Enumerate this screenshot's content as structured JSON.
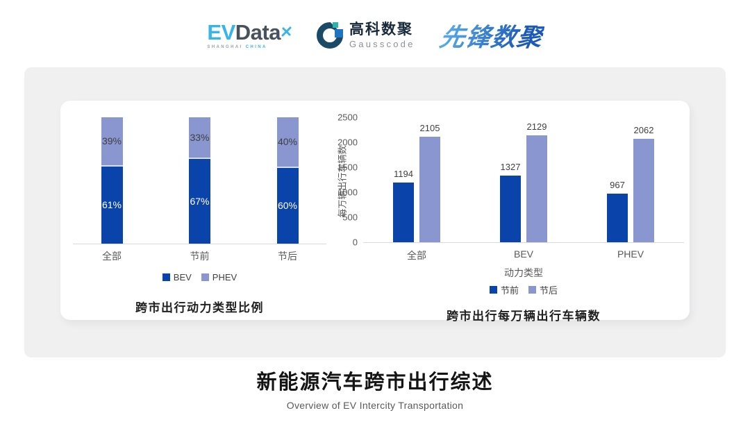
{
  "header": {
    "evdata": {
      "ev": "EV",
      "data": "Data",
      "sub_left": "SHANGHAI",
      "sub_right": "CHINA"
    },
    "gausscode": {
      "cn": "高科数聚",
      "en": "Gausscode"
    },
    "xianfeng": "先锋数聚"
  },
  "footer": {
    "title": "新能源汽车跨市出行综述",
    "subtitle": "Overview of EV Intercity Transportation"
  },
  "colors": {
    "series_dark": "#0a43a9",
    "series_light": "#8a96cf",
    "axis_text": "#595959",
    "axis_line": "#d9d9d9"
  },
  "chart_data": [
    {
      "type": "bar",
      "variant": "stacked-100",
      "title": "跨市出行动力类型比例",
      "categories": [
        "全部",
        "节前",
        "节后"
      ],
      "series": [
        {
          "name": "BEV",
          "values": [
            61,
            67,
            60
          ],
          "unit": "%",
          "color": "#0a43a9",
          "label_color": "#ffffff"
        },
        {
          "name": "PHEV",
          "values": [
            39,
            33,
            40
          ],
          "unit": "%",
          "color": "#8a96cf",
          "label_color": "#3f3f3f"
        }
      ],
      "ylim": [
        0,
        100
      ],
      "grid": false,
      "legend_position": "bottom"
    },
    {
      "type": "bar",
      "variant": "grouped",
      "title": "跨市出行每万辆出行车辆数",
      "xlabel": "动力类型",
      "ylabel": "每万辆出行车辆数",
      "categories": [
        "全部",
        "BEV",
        "PHEV"
      ],
      "series": [
        {
          "name": "节前",
          "values": [
            1194,
            1327,
            967
          ],
          "color": "#0a43a9"
        },
        {
          "name": "节后",
          "values": [
            2105,
            2129,
            2062
          ],
          "color": "#8a96cf"
        }
      ],
      "ylim": [
        0,
        2500
      ],
      "yticks": [
        0,
        500,
        1000,
        1500,
        2000,
        2500
      ],
      "grid": false,
      "legend_position": "bottom"
    }
  ]
}
